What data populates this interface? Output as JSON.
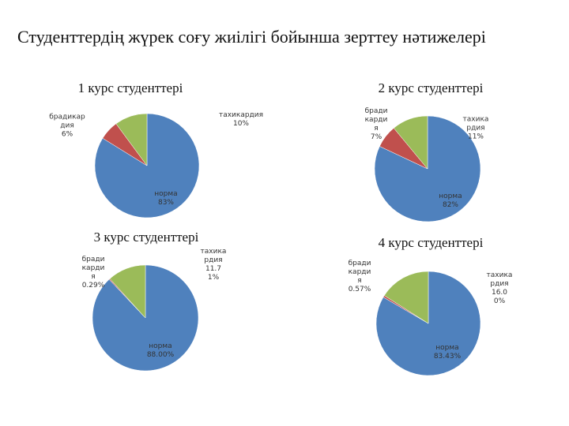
{
  "title": "Студенттердің жүрек соғу жиілігі бойынша зерттеу нәтижелері",
  "chart_data": [
    {
      "type": "pie",
      "title": "1 курс студенттері",
      "categories": [
        "норма",
        "брадикардия",
        "тахикардия"
      ],
      "values": [
        83,
        6,
        10
      ],
      "value_labels": [
        "83%",
        "6%",
        "10%"
      ],
      "colors": [
        "#4f81bd",
        "#c0504d",
        "#9bbb59"
      ]
    },
    {
      "type": "pie",
      "title": "2 курс студенттері",
      "categories": [
        "норма",
        "брадикардия",
        "тахикардия"
      ],
      "values": [
        82,
        7,
        11
      ],
      "value_labels": [
        "82%",
        "7%",
        "11%"
      ],
      "colors": [
        "#4f81bd",
        "#c0504d",
        "#9bbb59"
      ]
    },
    {
      "type": "pie",
      "title": "3 курс студенттері",
      "categories": [
        "норма",
        "брадикардия",
        "тахикардия"
      ],
      "values": [
        88,
        0.29,
        11.71
      ],
      "value_labels": [
        "88.00%",
        "0.29%",
        "11.71%"
      ],
      "colors": [
        "#4f81bd",
        "#c0504d",
        "#9bbb59"
      ]
    },
    {
      "type": "pie",
      "title": "4 курс студенттері",
      "categories": [
        "норма",
        "брадикардия",
        "тахикардия"
      ],
      "values": [
        83.43,
        0.57,
        16
      ],
      "value_labels": [
        "83.43%",
        "0.57%",
        "16.00%"
      ],
      "colors": [
        "#4f81bd",
        "#c0504d",
        "#9bbb59"
      ]
    }
  ]
}
